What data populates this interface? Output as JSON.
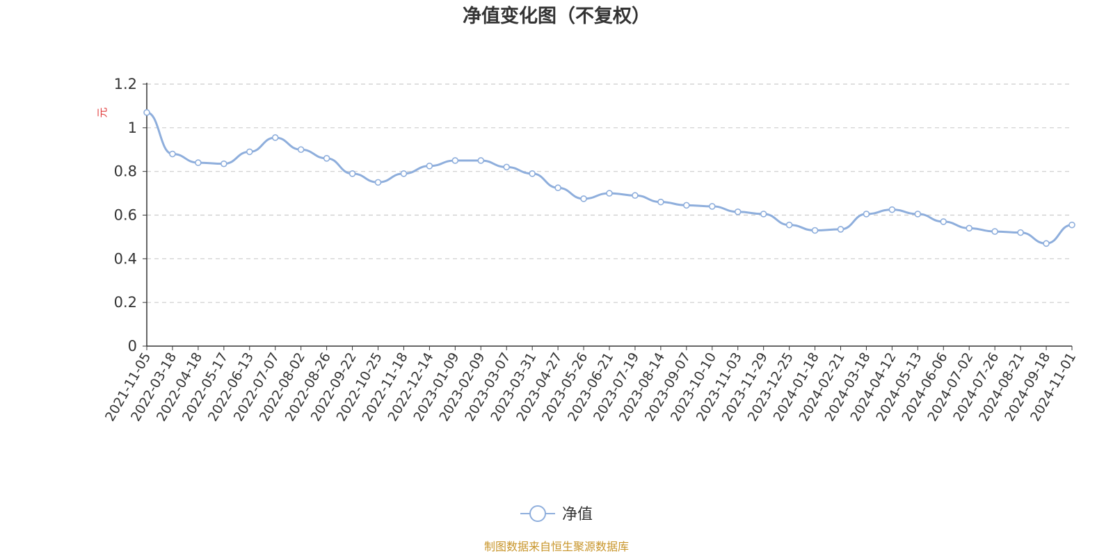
{
  "chart_data": {
    "type": "line",
    "title": "净值变化图（不复权）",
    "ylabel": "元",
    "ylim": [
      0,
      1.2
    ],
    "yticks": [
      "0",
      "0.2",
      "0.4",
      "0.6",
      "0.8",
      "1",
      "1.2"
    ],
    "ytick_values": [
      0,
      0.2,
      0.4,
      0.6,
      0.8,
      1.0,
      1.2
    ],
    "grid": true,
    "legend_position": "bottom-center",
    "x_tick_labels": [
      "2021-11-05",
      "2022-03-18",
      "2022-04-18",
      "2022-05-17",
      "2022-06-13",
      "2022-07-07",
      "2022-08-02",
      "2022-08-26",
      "2022-09-22",
      "2022-10-25",
      "2022-11-18",
      "2022-12-14",
      "2023-01-09",
      "2023-02-09",
      "2023-03-07",
      "2023-03-31",
      "2023-04-27",
      "2023-05-26",
      "2023-06-21",
      "2023-07-19",
      "2023-08-14",
      "2023-09-07",
      "2023-10-10",
      "2023-11-03",
      "2023-11-29",
      "2023-12-25",
      "2024-01-18",
      "2024-02-21",
      "2024-03-18",
      "2024-04-12",
      "2024-05-13",
      "2024-06-06",
      "2024-07-02",
      "2024-07-26",
      "2024-08-21",
      "2024-09-18",
      "2024-11-01"
    ],
    "series": [
      {
        "name": "净值",
        "color": "#8eaedc",
        "x": [
          "2021-11-05",
          "2022-03-18",
          "2022-04-18",
          "2022-05-17",
          "2022-06-13",
          "2022-07-07",
          "2022-08-02",
          "2022-08-26",
          "2022-09-22",
          "2022-10-25",
          "2022-11-18",
          "2022-12-14",
          "2023-01-09",
          "2023-02-09",
          "2023-03-07",
          "2023-03-31",
          "2023-04-27",
          "2023-05-26",
          "2023-06-21",
          "2023-07-19",
          "2023-08-14",
          "2023-09-07",
          "2023-10-10",
          "2023-11-03",
          "2023-11-29",
          "2023-12-25",
          "2024-01-18",
          "2024-02-21",
          "2024-03-18",
          "2024-04-12",
          "2024-05-13",
          "2024-06-06",
          "2024-07-02",
          "2024-07-26",
          "2024-08-21",
          "2024-09-18",
          "2024-11-01"
        ],
        "values": [
          1.07,
          0.88,
          0.84,
          0.835,
          0.89,
          0.955,
          0.9,
          0.86,
          0.79,
          0.75,
          0.79,
          0.825,
          0.85,
          0.85,
          0.82,
          0.79,
          0.725,
          0.675,
          0.7,
          0.69,
          0.66,
          0.645,
          0.64,
          0.615,
          0.605,
          0.555,
          0.53,
          0.535,
          0.605,
          0.625,
          0.605,
          0.57,
          0.54,
          0.525,
          0.52,
          0.47,
          0.555
        ]
      }
    ]
  },
  "footer": {
    "source_text": "制图数据来自恒生聚源数据库",
    "source_color": "#c8952a"
  }
}
